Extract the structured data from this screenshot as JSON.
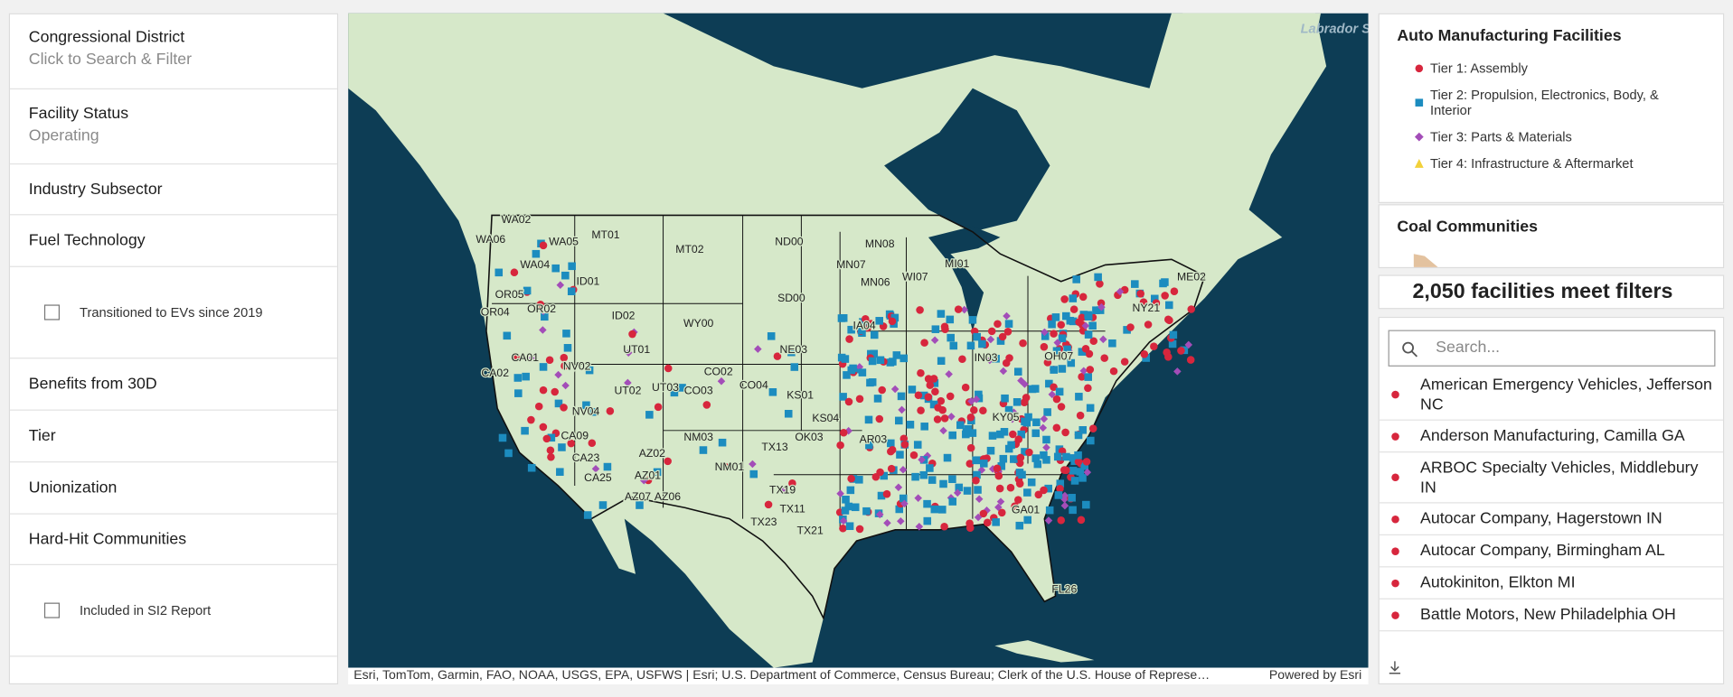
{
  "filters": {
    "congressional_district": {
      "label": "Congressional District",
      "value": "Click to Search & Filter"
    },
    "facility_status": {
      "label": "Facility Status",
      "value": "Operating"
    },
    "industry_subsector": "Industry Subsector",
    "fuel_technology": "Fuel Technology",
    "transitioned_checkbox": "Transitioned to EVs since 2019",
    "benefits_30d": "Benefits from 30D",
    "tier": "Tier",
    "unionization": "Unionization",
    "hard_hit": "Hard-Hit Communities",
    "si2_checkbox": "Included in SI2 Report"
  },
  "map": {
    "sea_label": "Labrador Sea",
    "attribution": "Esri, TomTom, Garmin, FAO, NOAA, USGS, EPA, USFWS | Esri; U.S. Department of Commerce, Census Bureau; Clerk of the U.S. House of Represe…",
    "powered_by": "Powered by Esri",
    "labels": [
      "WA02",
      "WA06",
      "WA05",
      "WA04",
      "MT01",
      "MT02",
      "ND00",
      "MN08",
      "OR02",
      "OR04",
      "OR05",
      "ID01",
      "ID02",
      "WY00",
      "SD00",
      "MN07",
      "NE03",
      "NV02",
      "NV04",
      "UT01",
      "UT02",
      "UT03",
      "CO02",
      "CO03",
      "CO04",
      "KS01",
      "KS04",
      "NM03",
      "NM01",
      "AZ02",
      "AZ01",
      "AZ06",
      "AZ07",
      "TX19",
      "TX11",
      "TX23",
      "TX13",
      "OK03",
      "CA01",
      "CA02",
      "CA23",
      "CA25",
      "IA04",
      "MI01",
      "ME02",
      "NY21",
      "FL26",
      "GA01",
      "MN06",
      "WI07",
      "IN03",
      "OH07",
      "KY05",
      "AR03",
      "TX21",
      "CA09"
    ]
  },
  "legend": {
    "title": "Auto Manufacturing Facilities",
    "items": [
      "Tier 1: Assembly",
      "Tier 2: Propulsion, Electronics, Body, & Interior",
      "Tier 3: Parts & Materials",
      "Tier 4: Infrastructure & Aftermarket"
    ],
    "coal_title": "Coal Communities"
  },
  "count_text": "2,050 facilities meet filters",
  "search_placeholder": "Search...",
  "results": [
    "American Emergency Vehicles, Jefferson NC",
    "Anderson Manufacturing, Camilla GA",
    "ARBOC Specialty Vehicles, Middlebury IN",
    "Autocar Company, Hagerstown IN",
    "Autocar Company, Birmingham AL",
    "Autokiniton, Elkton MI",
    "Battle Motors, New Philadelphia OH"
  ]
}
